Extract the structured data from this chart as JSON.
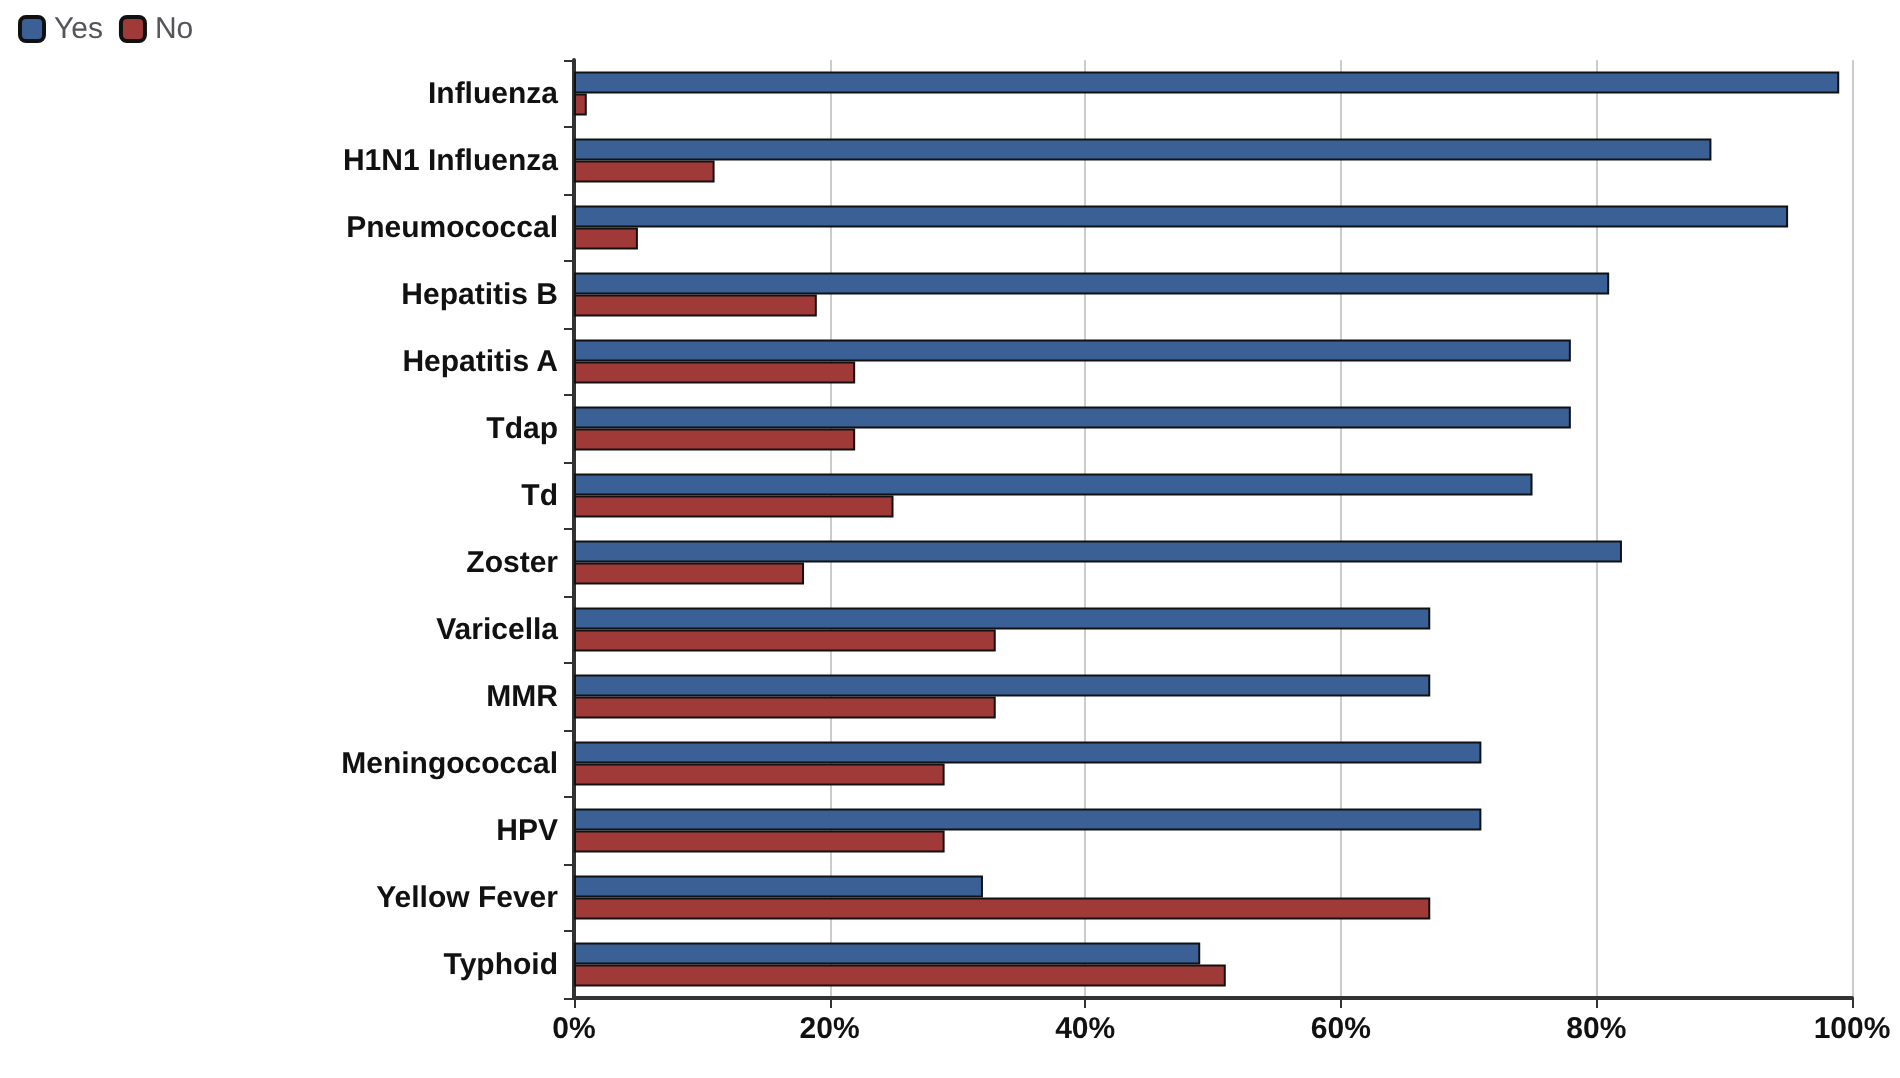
{
  "chart_data": {
    "type": "bar",
    "orientation": "horizontal",
    "categories": [
      "Influenza",
      "H1N1 Influenza",
      "Pneumococcal",
      "Hepatitis B",
      "Hepatitis A",
      "Tdap",
      "Td",
      "Zoster",
      "Varicella",
      "MMR",
      "Meningococcal",
      "HPV",
      "Yellow Fever",
      "Typhoid"
    ],
    "series": [
      {
        "name": "Yes",
        "color": "#3a6096",
        "values": [
          99,
          89,
          95,
          81,
          78,
          78,
          75,
          82,
          67,
          67,
          71,
          71,
          32,
          49
        ]
      },
      {
        "name": "No",
        "color": "#a03a38",
        "values": [
          1,
          11,
          5,
          19,
          22,
          22,
          25,
          18,
          33,
          33,
          29,
          29,
          67,
          51
        ]
      }
    ],
    "xlim": [
      0,
      100
    ],
    "xticks": [
      {
        "value": 0,
        "label": "0%"
      },
      {
        "value": 20,
        "label": "20%"
      },
      {
        "value": 40,
        "label": "40%"
      },
      {
        "value": 60,
        "label": "60%"
      },
      {
        "value": 80,
        "label": "80%"
      },
      {
        "value": 100,
        "label": "100%"
      }
    ],
    "grid": "x",
    "legend": "top left"
  }
}
